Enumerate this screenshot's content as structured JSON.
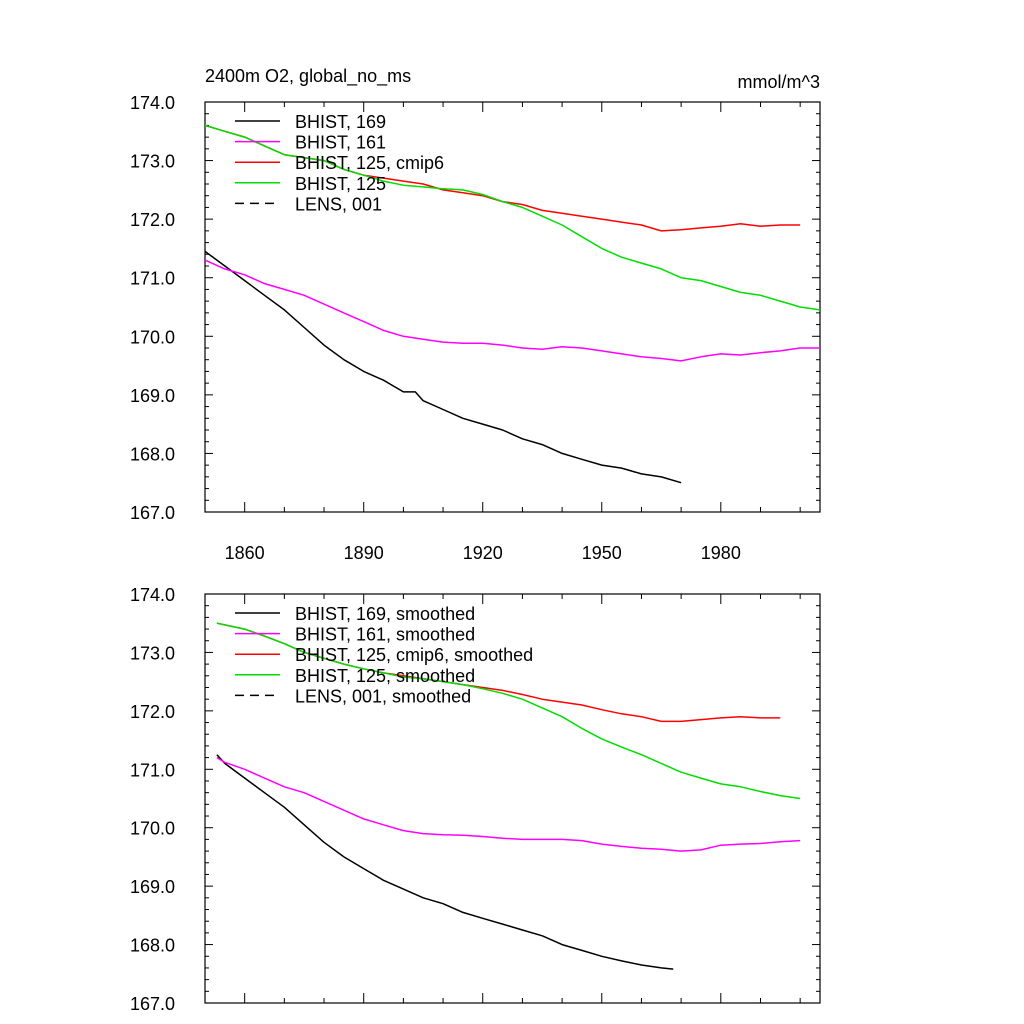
{
  "chart_data": [
    {
      "type": "line",
      "title": "2400m O2, global_no_ms",
      "units_label": "mmol/m^3",
      "xlim": [
        1850,
        2005
      ],
      "ylim": [
        167.0,
        174.0
      ],
      "x_ticks": [
        1860,
        1890,
        1920,
        1950,
        1980
      ],
      "x_tick_labels": [
        "1860",
        "1890",
        "1920",
        "1950",
        "1980"
      ],
      "y_ticks": [
        167.0,
        168.0,
        169.0,
        170.0,
        171.0,
        172.0,
        173.0,
        174.0
      ],
      "y_tick_labels": [
        "167.0",
        "168.0",
        "169.0",
        "170.0",
        "171.0",
        "172.0",
        "173.0",
        "174.0"
      ],
      "legend": [
        {
          "label": "BHIST, 169",
          "color": "#000000",
          "dash": "solid"
        },
        {
          "label": "BHIST, 161",
          "color": "#ff00ff",
          "dash": "solid"
        },
        {
          "label": "BHIST, 125, cmip6",
          "color": "#ff0000",
          "dash": "solid"
        },
        {
          "label": "BHIST, 125",
          "color": "#00dd00",
          "dash": "solid"
        },
        {
          "label": "LENS, 001",
          "color": "#000000",
          "dash": "dashed"
        }
      ],
      "series": [
        {
          "name": "BHIST, 169",
          "color": "#000000",
          "x": [
            1850,
            1853,
            1856,
            1860,
            1865,
            1870,
            1875,
            1880,
            1885,
            1890,
            1895,
            1900,
            1903,
            1905,
            1910,
            1915,
            1920,
            1925,
            1930,
            1935,
            1940,
            1945,
            1950,
            1955,
            1960,
            1965,
            1970
          ],
          "y": [
            171.45,
            171.3,
            171.15,
            170.95,
            170.7,
            170.45,
            170.15,
            169.85,
            169.6,
            169.4,
            169.25,
            169.05,
            169.05,
            168.9,
            168.75,
            168.6,
            168.5,
            168.4,
            168.25,
            168.15,
            168.0,
            167.9,
            167.8,
            167.75,
            167.65,
            167.6,
            167.5
          ]
        },
        {
          "name": "BHIST, 161",
          "color": "#ff00ff",
          "x": [
            1850,
            1855,
            1860,
            1865,
            1870,
            1875,
            1880,
            1885,
            1890,
            1895,
            1900,
            1905,
            1910,
            1915,
            1920,
            1925,
            1930,
            1935,
            1940,
            1945,
            1950,
            1955,
            1960,
            1965,
            1970,
            1975,
            1980,
            1985,
            1990,
            1995,
            2000,
            2005
          ],
          "y": [
            171.3,
            171.15,
            171.05,
            170.9,
            170.8,
            170.7,
            170.55,
            170.4,
            170.25,
            170.1,
            170.0,
            169.95,
            169.9,
            169.88,
            169.88,
            169.85,
            169.8,
            169.78,
            169.82,
            169.8,
            169.75,
            169.7,
            169.65,
            169.62,
            169.58,
            169.65,
            169.7,
            169.68,
            169.72,
            169.75,
            169.8,
            169.8
          ]
        },
        {
          "name": "BHIST, 125, cmip6",
          "color": "#ff0000",
          "x": [
            1850,
            1855,
            1860,
            1865,
            1870,
            1875,
            1880,
            1885,
            1890,
            1895,
            1900,
            1905,
            1910,
            1915,
            1920,
            1925,
            1930,
            1935,
            1940,
            1945,
            1950,
            1955,
            1960,
            1965,
            1970,
            1975,
            1980,
            1985,
            1990,
            1995,
            2000
          ],
          "y": [
            173.6,
            173.5,
            173.4,
            173.25,
            173.1,
            173.05,
            173.0,
            172.85,
            172.75,
            172.7,
            172.65,
            172.6,
            172.5,
            172.45,
            172.4,
            172.3,
            172.25,
            172.15,
            172.1,
            172.05,
            172.0,
            171.95,
            171.9,
            171.8,
            171.82,
            171.85,
            171.88,
            171.92,
            171.88,
            171.9,
            171.9
          ]
        },
        {
          "name": "BHIST, 125",
          "color": "#00dd00",
          "x": [
            1850,
            1855,
            1860,
            1865,
            1870,
            1875,
            1880,
            1885,
            1890,
            1895,
            1900,
            1905,
            1910,
            1915,
            1920,
            1925,
            1930,
            1935,
            1940,
            1945,
            1950,
            1955,
            1960,
            1965,
            1970,
            1975,
            1980,
            1985,
            1990,
            1995,
            2000,
            2005
          ],
          "y": [
            173.6,
            173.5,
            173.4,
            173.25,
            173.1,
            173.05,
            173.0,
            172.85,
            172.75,
            172.65,
            172.58,
            172.55,
            172.52,
            172.5,
            172.42,
            172.3,
            172.2,
            172.05,
            171.9,
            171.7,
            171.5,
            171.35,
            171.25,
            171.15,
            171.0,
            170.95,
            170.85,
            170.75,
            170.7,
            170.6,
            170.5,
            170.45
          ]
        }
      ]
    },
    {
      "type": "line",
      "title": "",
      "xlim": [
        1850,
        2005
      ],
      "ylim": [
        167.0,
        174.0
      ],
      "y_ticks": [
        167.0,
        168.0,
        169.0,
        170.0,
        171.0,
        172.0,
        173.0,
        174.0
      ],
      "y_tick_labels": [
        "167.0",
        "168.0",
        "169.0",
        "170.0",
        "171.0",
        "172.0",
        "173.0",
        "174.0"
      ],
      "legend": [
        {
          "label": "BHIST, 169, smoothed",
          "color": "#000000",
          "dash": "solid"
        },
        {
          "label": "BHIST, 161, smoothed",
          "color": "#ff00ff",
          "dash": "solid"
        },
        {
          "label": "BHIST, 125, cmip6, smoothed",
          "color": "#ff0000",
          "dash": "solid"
        },
        {
          "label": "BHIST, 125, smoothed",
          "color": "#00dd00",
          "dash": "solid"
        },
        {
          "label": "LENS, 001, smoothed",
          "color": "#000000",
          "dash": "dashed"
        }
      ],
      "series": [
        {
          "name": "BHIST, 169, smoothed",
          "color": "#000000",
          "x": [
            1853,
            1855,
            1860,
            1865,
            1870,
            1875,
            1880,
            1885,
            1890,
            1895,
            1900,
            1905,
            1910,
            1915,
            1920,
            1925,
            1930,
            1935,
            1940,
            1945,
            1950,
            1955,
            1960,
            1965,
            1968
          ],
          "y": [
            171.25,
            171.1,
            170.85,
            170.6,
            170.35,
            170.05,
            169.75,
            169.5,
            169.3,
            169.1,
            168.95,
            168.8,
            168.7,
            168.55,
            168.45,
            168.35,
            168.25,
            168.15,
            168.0,
            167.9,
            167.8,
            167.72,
            167.65,
            167.6,
            167.58
          ]
        },
        {
          "name": "BHIST, 161, smoothed",
          "color": "#ff00ff",
          "x": [
            1853,
            1855,
            1860,
            1865,
            1870,
            1875,
            1880,
            1885,
            1890,
            1895,
            1900,
            1905,
            1910,
            1915,
            1920,
            1925,
            1930,
            1935,
            1940,
            1945,
            1950,
            1955,
            1960,
            1965,
            1970,
            1975,
            1980,
            1985,
            1990,
            1995,
            2000
          ],
          "y": [
            171.2,
            171.12,
            171.0,
            170.85,
            170.7,
            170.6,
            170.45,
            170.3,
            170.15,
            170.05,
            169.95,
            169.9,
            169.88,
            169.87,
            169.85,
            169.82,
            169.8,
            169.8,
            169.8,
            169.78,
            169.72,
            169.68,
            169.65,
            169.63,
            169.6,
            169.62,
            169.7,
            169.72,
            169.73,
            169.76,
            169.78
          ]
        },
        {
          "name": "BHIST, 125, cmip6, smoothed",
          "color": "#ff0000",
          "x": [
            1853,
            1860,
            1865,
            1870,
            1875,
            1880,
            1885,
            1890,
            1895,
            1900,
            1905,
            1910,
            1915,
            1920,
            1925,
            1930,
            1935,
            1940,
            1945,
            1950,
            1955,
            1960,
            1965,
            1970,
            1975,
            1980,
            1985,
            1990,
            1995
          ],
          "y": [
            173.5,
            173.4,
            173.28,
            173.15,
            173.0,
            172.9,
            172.8,
            172.72,
            172.65,
            172.6,
            172.55,
            172.5,
            172.45,
            172.4,
            172.35,
            172.28,
            172.2,
            172.15,
            172.1,
            172.02,
            171.95,
            171.9,
            171.82,
            171.82,
            171.85,
            171.88,
            171.9,
            171.88,
            171.88
          ]
        },
        {
          "name": "BHIST, 125, smoothed",
          "color": "#00dd00",
          "x": [
            1853,
            1860,
            1865,
            1870,
            1875,
            1880,
            1885,
            1890,
            1895,
            1900,
            1905,
            1910,
            1915,
            1920,
            1925,
            1930,
            1935,
            1940,
            1945,
            1950,
            1955,
            1960,
            1965,
            1970,
            1975,
            1980,
            1985,
            1990,
            1995,
            2000
          ],
          "y": [
            173.5,
            173.4,
            173.28,
            173.15,
            173.0,
            172.9,
            172.8,
            172.72,
            172.65,
            172.58,
            172.55,
            172.5,
            172.45,
            172.38,
            172.3,
            172.2,
            172.05,
            171.9,
            171.7,
            171.52,
            171.38,
            171.25,
            171.1,
            170.95,
            170.85,
            170.75,
            170.7,
            170.62,
            170.55,
            170.5
          ]
        }
      ]
    }
  ]
}
